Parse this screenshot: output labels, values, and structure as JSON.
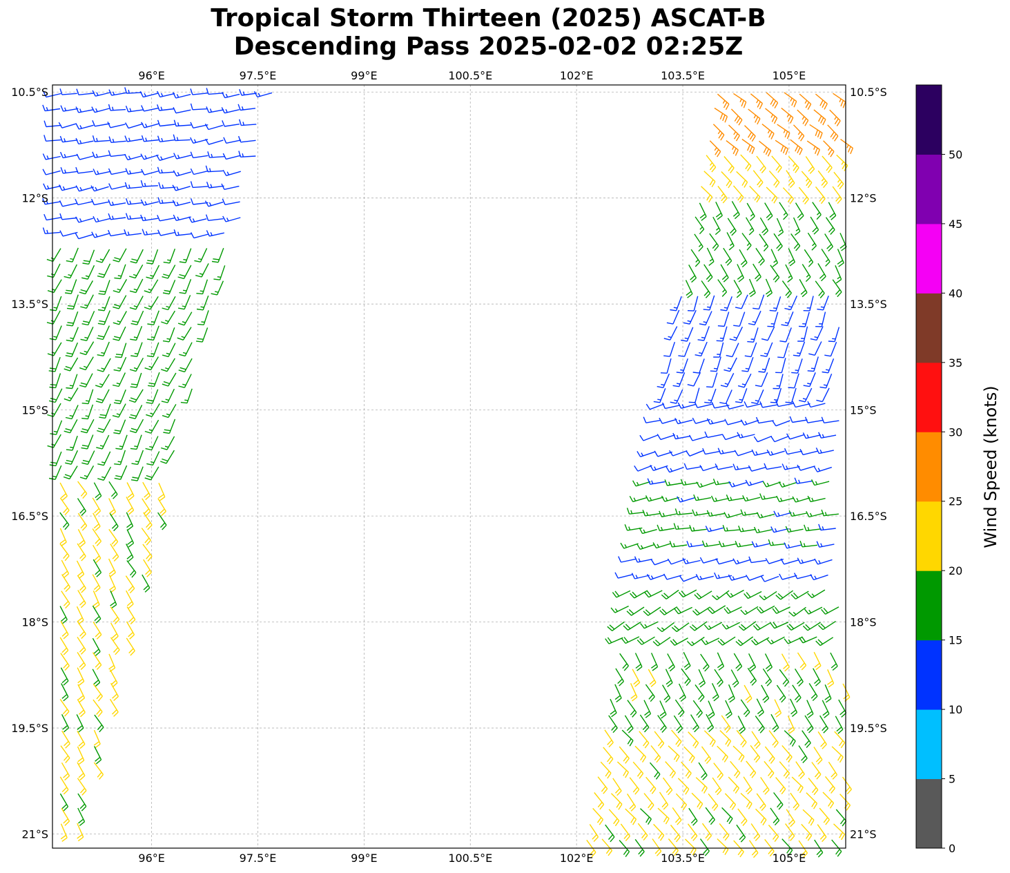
{
  "chart_data": {
    "type": "wind-barb map",
    "title": "Tropical Storm Thirteen (2025) ASCAT-B",
    "subtitle": "Descending Pass 2025-02-02 02:25Z",
    "x_ticks": [
      "96°E",
      "97.5°E",
      "99°E",
      "100.5°E",
      "102°E",
      "103.5°E",
      "105°E"
    ],
    "x_tick_values": [
      96,
      97.5,
      99,
      100.5,
      102,
      103.5,
      105
    ],
    "y_ticks": [
      "10.5°S",
      "12°S",
      "13.5°S",
      "15°S",
      "16.5°S",
      "18°S",
      "19.5°S",
      "21°S"
    ],
    "y_tick_values": [
      -10.5,
      -12,
      -13.5,
      -15,
      -16.5,
      -18,
      -19.5,
      -21
    ],
    "xlim": [
      94.6,
      105.8
    ],
    "ylim": [
      -21.2,
      -10.4
    ],
    "grid": true,
    "colorbar": {
      "label": "Wind Speed (knots)",
      "ticks": [
        "0",
        "5",
        "10",
        "15",
        "20",
        "25",
        "30",
        "35",
        "40",
        "45",
        "50"
      ],
      "tick_values": [
        0,
        5,
        10,
        15,
        20,
        25,
        30,
        35,
        40,
        45,
        50
      ],
      "range": [
        0,
        55
      ],
      "bins": [
        {
          "from": 0,
          "to": 5,
          "color": "#595959"
        },
        {
          "from": 5,
          "to": 10,
          "color": "#00bfff"
        },
        {
          "from": 10,
          "to": 15,
          "color": "#0033ff"
        },
        {
          "from": 15,
          "to": 20,
          "color": "#009900"
        },
        {
          "from": 20,
          "to": 25,
          "color": "#ffd700"
        },
        {
          "from": 25,
          "to": 30,
          "color": "#ff8c00"
        },
        {
          "from": 30,
          "to": 35,
          "color": "#ff1010"
        },
        {
          "from": 35,
          "to": 40,
          "color": "#7f3a28"
        },
        {
          "from": 40,
          "to": 45,
          "color": "#f500f5"
        },
        {
          "from": 45,
          "to": 50,
          "color": "#8000b0"
        },
        {
          "from": 50,
          "to": 55,
          "color": "#2c0060"
        }
      ]
    },
    "swaths": [
      {
        "name": "west-swath",
        "edges": [
          [
            94.6,
            -10.4,
            97.8,
            -10.4
          ],
          [
            94.6,
            -21.0,
            95.0,
            -21.0
          ]
        ],
        "fields": [
          {
            "lat_top": -10.4,
            "lat_bottom": -12.6,
            "speed": 13,
            "direction": 260
          },
          {
            "lat_top": -12.6,
            "lat_bottom": -16.0,
            "speed": 17,
            "direction": 205
          },
          {
            "lat_top": -16.0,
            "lat_bottom": -21.0,
            "speed": 21,
            "direction": 150
          }
        ]
      },
      {
        "name": "east-swath",
        "edges": [
          [
            103.9,
            -10.4,
            105.8,
            -10.4
          ],
          [
            102.0,
            -21.2,
            105.8,
            -21.2
          ]
        ],
        "fields": [
          {
            "lat_top": -10.4,
            "lat_bottom": -11.3,
            "speed": 27,
            "direction": 130
          },
          {
            "lat_top": -11.3,
            "lat_bottom": -12.0,
            "speed": 22,
            "direction": 140
          },
          {
            "lat_top": -12.0,
            "lat_bottom": -13.3,
            "speed": 18,
            "direction": 150
          },
          {
            "lat_top": -13.3,
            "lat_bottom": -14.9,
            "speed": 13,
            "direction": 200
          },
          {
            "lat_top": -14.9,
            "lat_bottom": -16.0,
            "speed": 12,
            "direction": 255
          },
          {
            "lat_top": -16.0,
            "lat_bottom": -17.0,
            "speed": 16,
            "direction": 258
          },
          {
            "lat_top": -17.0,
            "lat_bottom": -17.4,
            "speed": 13,
            "direction": 255
          },
          {
            "lat_top": -17.4,
            "lat_bottom": -18.3,
            "speed": 18,
            "direction": 240
          },
          {
            "lat_top": -18.3,
            "lat_bottom": -19.5,
            "speed": 19,
            "direction": 150
          },
          {
            "lat_top": -19.5,
            "lat_bottom": -21.2,
            "speed": 21,
            "direction": 140
          }
        ]
      }
    ]
  }
}
